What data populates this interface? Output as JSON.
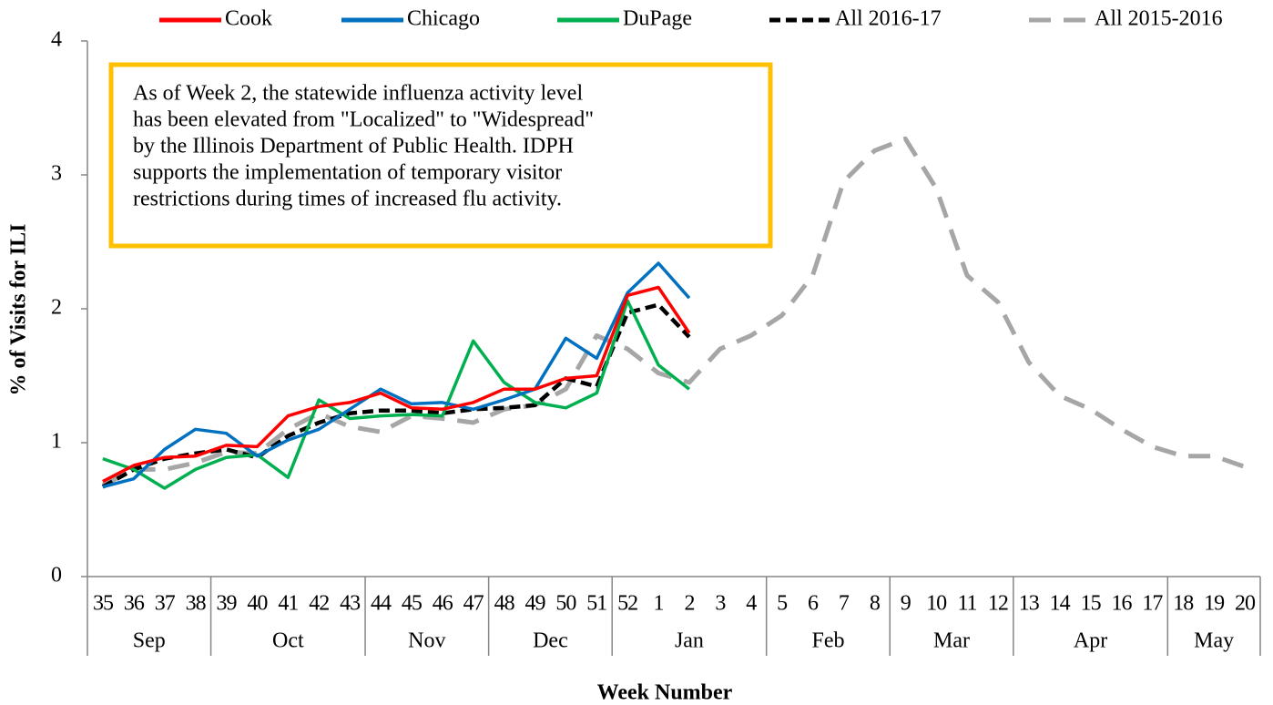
{
  "chart_data": {
    "type": "line",
    "categories": [
      "35",
      "36",
      "37",
      "38",
      "39",
      "40",
      "41",
      "42",
      "43",
      "44",
      "45",
      "46",
      "47",
      "48",
      "49",
      "50",
      "51",
      "52",
      "1",
      "2",
      "3",
      "4",
      "5",
      "6",
      "7",
      "8",
      "9",
      "10",
      "11",
      "12",
      "13",
      "14",
      "15",
      "16",
      "17",
      "18",
      "19",
      "20"
    ],
    "month_groups": [
      {
        "label": "Sep",
        "count": 4
      },
      {
        "label": "Oct",
        "count": 5
      },
      {
        "label": "Nov",
        "count": 4
      },
      {
        "label": "Dec",
        "count": 4
      },
      {
        "label": "Jan",
        "count": 5
      },
      {
        "label": "Feb",
        "count": 4
      },
      {
        "label": "Mar",
        "count": 4
      },
      {
        "label": "Apr",
        "count": 5
      },
      {
        "label": "May",
        "count": 3
      }
    ],
    "series": [
      {
        "name": "Cook",
        "color": "#ff0000",
        "dashed": false,
        "values": [
          0.71,
          0.83,
          0.89,
          0.9,
          0.98,
          0.97,
          1.2,
          1.27,
          1.3,
          1.37,
          1.26,
          1.25,
          1.3,
          1.4,
          1.4,
          1.48,
          1.5,
          2.1,
          2.16,
          1.82,
          null,
          null,
          null,
          null,
          null,
          null,
          null,
          null,
          null,
          null,
          null,
          null,
          null,
          null,
          null,
          null,
          null,
          null
        ]
      },
      {
        "name": "Chicago",
        "color": "#0070c0",
        "dashed": false,
        "values": [
          0.67,
          0.73,
          0.95,
          1.1,
          1.07,
          0.9,
          1.02,
          1.1,
          1.25,
          1.4,
          1.29,
          1.3,
          1.25,
          1.32,
          1.4,
          1.78,
          1.63,
          2.12,
          2.34,
          2.08,
          null,
          null,
          null,
          null,
          null,
          null,
          null,
          null,
          null,
          null,
          null,
          null,
          null,
          null,
          null,
          null,
          null,
          null
        ]
      },
      {
        "name": "DuPage",
        "color": "#00b050",
        "dashed": false,
        "values": [
          0.88,
          0.8,
          0.66,
          0.8,
          0.89,
          0.91,
          0.74,
          1.32,
          1.18,
          1.2,
          1.21,
          1.2,
          1.76,
          1.45,
          1.3,
          1.26,
          1.37,
          2.06,
          1.58,
          1.4,
          null,
          null,
          null,
          null,
          null,
          null,
          null,
          null,
          null,
          null,
          null,
          null,
          null,
          null,
          null,
          null,
          null,
          null
        ]
      },
      {
        "name": "All 2016-17",
        "color": "#000000",
        "dashed": true,
        "values": [
          0.67,
          0.8,
          0.88,
          0.92,
          0.95,
          0.89,
          1.05,
          1.15,
          1.22,
          1.24,
          1.24,
          1.22,
          1.25,
          1.26,
          1.28,
          1.48,
          1.42,
          1.97,
          2.03,
          1.79,
          null,
          null,
          null,
          null,
          null,
          null,
          null,
          null,
          null,
          null,
          null,
          null,
          null,
          null,
          null,
          null,
          null,
          null
        ]
      },
      {
        "name": "All 2015-2016",
        "color": "#a6a6a6",
        "dashed": true,
        "values": [
          0.68,
          0.8,
          0.8,
          0.85,
          0.93,
          0.92,
          1.1,
          1.22,
          1.12,
          1.08,
          1.2,
          1.18,
          1.15,
          1.25,
          1.28,
          1.4,
          1.8,
          1.7,
          1.52,
          1.45,
          1.7,
          1.8,
          1.95,
          2.25,
          2.95,
          3.18,
          3.27,
          2.9,
          2.25,
          2.05,
          1.6,
          1.35,
          1.25,
          1.1,
          0.97,
          0.9,
          0.9,
          0.82
        ]
      }
    ],
    "ylim": [
      0,
      4
    ],
    "yticks": [
      0,
      1,
      2,
      3,
      4
    ],
    "x_label": "Week Number",
    "y_label": "% of Visits for ILI",
    "legend_position": "top",
    "annotation": {
      "lines": [
        "As of Week 2, the statewide influenza activity level",
        "has been elevated from \"Localized\" to \"Widespread\"",
        "by the Illinois Department of Public Health. IDPH",
        "supports the implementation of temporary visitor",
        "restrictions during times of increased flu activity."
      ],
      "border_color": "#ffc000"
    }
  }
}
